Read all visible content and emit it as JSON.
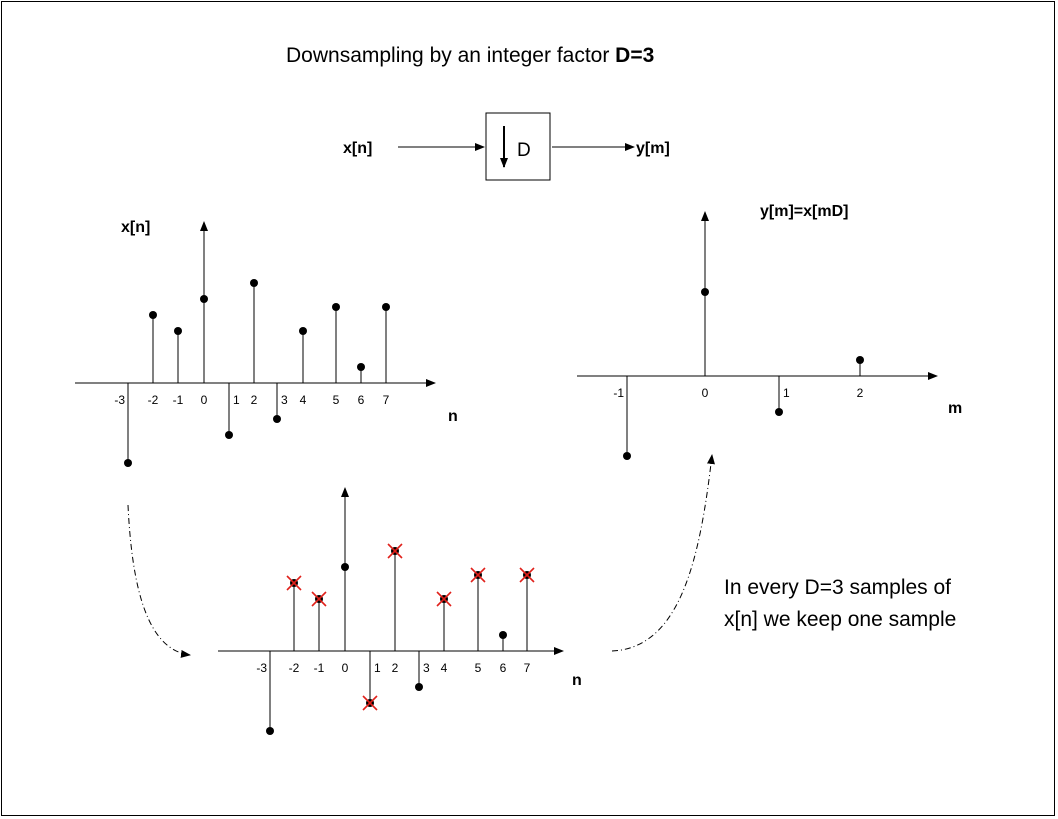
{
  "title": {
    "prefix": "Downsampling by an integer factor ",
    "bold": "D=3"
  },
  "block": {
    "input_label": "x[n]",
    "box_label": "D",
    "output_label": "y[m]"
  },
  "top_left_plot": {
    "ylabel": "x[n]",
    "xlabel": "n"
  },
  "top_right_plot": {
    "ylabel": "y[m]=x[mD]",
    "xlabel": "m"
  },
  "bottom_plot": {
    "xlabel": "n"
  },
  "caption": {
    "line1": "In every D=3 samples of",
    "line2": "x[n] we keep one sample"
  },
  "colors": {
    "stem": "#000000",
    "discard_mark": "#e0201a"
  },
  "chart_data": [
    {
      "type": "stem",
      "name": "x[n]",
      "xlabel": "n",
      "ylabel": "x[n]",
      "x": [
        -3,
        -2,
        -1,
        0,
        1,
        2,
        3,
        4,
        5,
        6,
        7
      ],
      "values": [
        -1.0,
        0.85,
        0.65,
        1.05,
        -0.65,
        1.25,
        -0.45,
        0.65,
        0.95,
        0.2,
        0.95
      ],
      "tick_labels": [
        "-3",
        "-2",
        "-1",
        "0",
        "1",
        "2",
        "3",
        "4",
        "5",
        "6",
        "7"
      ]
    },
    {
      "type": "stem",
      "name": "y[m]",
      "xlabel": "m",
      "ylabel": "y[m]=x[mD]",
      "x": [
        -1,
        0,
        1,
        2
      ],
      "values": [
        -1.0,
        1.05,
        -0.45,
        0.2
      ],
      "tick_labels": [
        "-1",
        "0",
        "1",
        "2"
      ]
    },
    {
      "type": "stem",
      "name": "x[n] with discarded samples",
      "xlabel": "n",
      "x": [
        -3,
        -2,
        -1,
        0,
        1,
        2,
        3,
        4,
        5,
        6,
        7
      ],
      "values": [
        -1.0,
        0.85,
        0.65,
        1.05,
        -0.65,
        1.25,
        -0.45,
        0.65,
        0.95,
        0.2,
        0.95
      ],
      "discarded": [
        false,
        true,
        true,
        false,
        true,
        true,
        false,
        true,
        true,
        false,
        true
      ],
      "tick_labels": [
        "-3",
        "-2",
        "-1",
        "0",
        "1",
        "2",
        "3",
        "4",
        "5",
        "6",
        "7"
      ]
    }
  ]
}
